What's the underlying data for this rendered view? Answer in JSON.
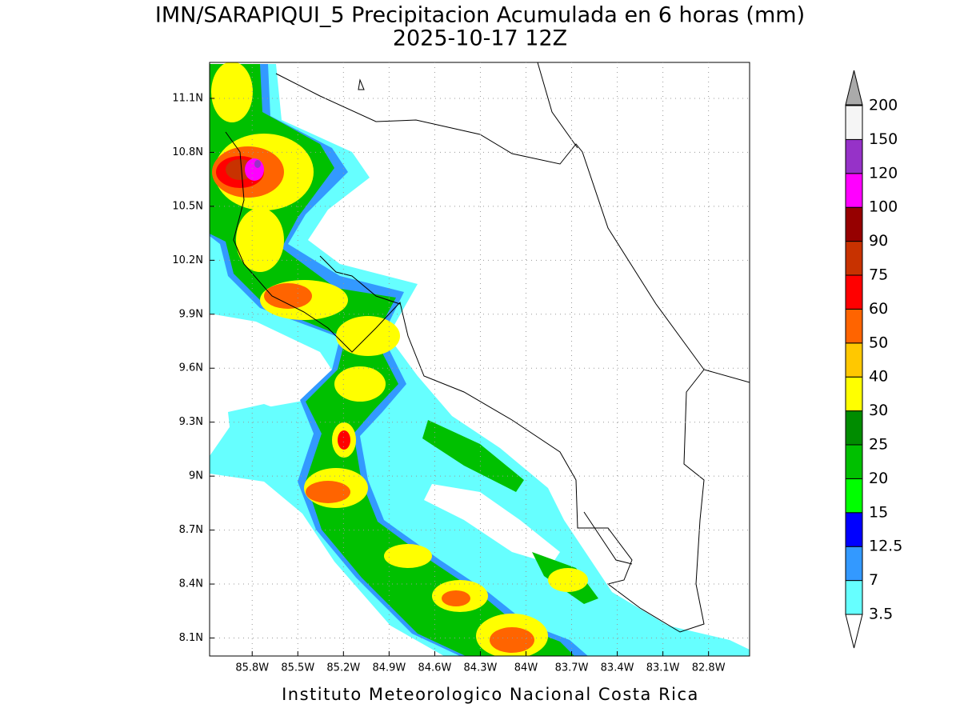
{
  "header": {
    "title": "IMN/SARAPIQUI_5 Precipitacion Acumulada en 6 horas (mm)",
    "subtitle": "2025-10-17 12Z"
  },
  "map": {
    "xlim": [
      -86.08,
      -82.53
    ],
    "ylim": [
      8.0,
      11.3
    ],
    "grid": true,
    "xticks": [
      {
        "value": -85.8,
        "label": "85.8W"
      },
      {
        "value": -85.5,
        "label": "85.5W"
      },
      {
        "value": -85.2,
        "label": "85.2W"
      },
      {
        "value": -84.9,
        "label": "84.9W"
      },
      {
        "value": -84.6,
        "label": "84.6W"
      },
      {
        "value": -84.3,
        "label": "84.3W"
      },
      {
        "value": -84.0,
        "label": "84W"
      },
      {
        "value": -83.7,
        "label": "83.7W"
      },
      {
        "value": -83.4,
        "label": "83.4W"
      },
      {
        "value": -83.1,
        "label": "83.1W"
      },
      {
        "value": -82.8,
        "label": "82.8W"
      }
    ],
    "yticks": [
      {
        "value": 8.1,
        "label": "8.1N"
      },
      {
        "value": 8.4,
        "label": "8.4N"
      },
      {
        "value": 8.7,
        "label": "8.7N"
      },
      {
        "value": 9.0,
        "label": "9N"
      },
      {
        "value": 9.3,
        "label": "9.3N"
      },
      {
        "value": 9.6,
        "label": "9.6N"
      },
      {
        "value": 9.9,
        "label": "9.9N"
      },
      {
        "value": 10.2,
        "label": "10.2N"
      },
      {
        "value": 10.5,
        "label": "10.5N"
      },
      {
        "value": 10.8,
        "label": "10.8N"
      },
      {
        "value": 11.1,
        "label": "11.1N"
      }
    ]
  },
  "colorbar": {
    "levels": [
      3.5,
      7,
      12.5,
      15,
      20,
      25,
      30,
      40,
      50,
      60,
      75,
      90,
      100,
      120,
      150,
      200
    ],
    "colors": [
      "#66ffff",
      "#3399ff",
      "#0000ff",
      "#00ff00",
      "#00c000",
      "#008c00",
      "#ffff00",
      "#ffc800",
      "#ff6400",
      "#ff0000",
      "#c83200",
      "#960000",
      "#ff00ff",
      "#9632c8",
      "#f5f5f5"
    ],
    "over_color": "#aaaaaa",
    "under_color": "#ffffff"
  },
  "footer": "Instituto Meteorologico Nacional Costa Rica"
}
